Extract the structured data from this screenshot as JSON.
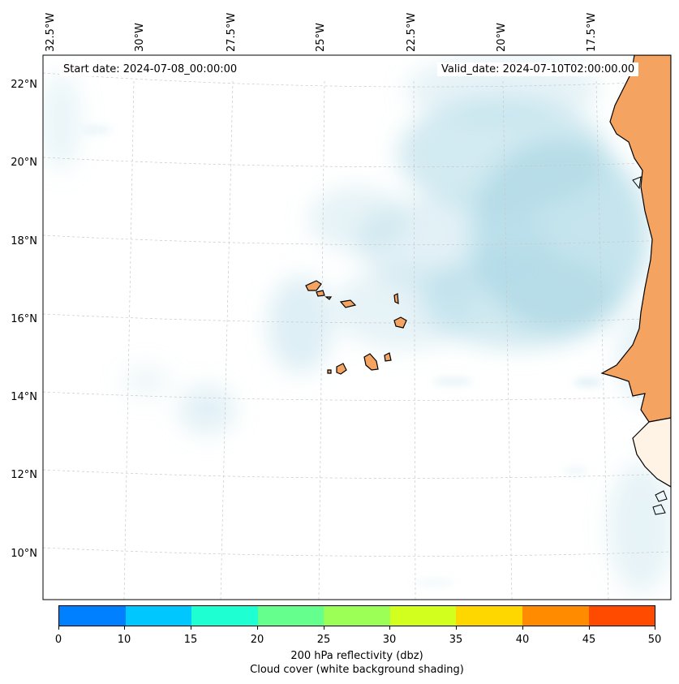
{
  "map": {
    "start_label": "Start date: 2024-07-08_00:00:00",
    "valid_label": "Valid_date: 2024-07-10T02:00:00.00",
    "lon_labels": [
      "32.5°W",
      "30°W",
      "27.5°W",
      "25°W",
      "22.5°W",
      "20°W",
      "17.5°W"
    ],
    "lat_labels": [
      "22°N",
      "20°N",
      "18°N",
      "16°N",
      "14°N",
      "12°N",
      "10°N"
    ],
    "cloud_color": "#add8e6",
    "land_reflectivity_color": "#f4a460"
  },
  "colorbar": {
    "ticks": [
      "0",
      "10",
      "15",
      "20",
      "25",
      "30",
      "35",
      "40",
      "45",
      "50"
    ],
    "colors": [
      "#0080ff",
      "#00c8ff",
      "#1effd2",
      "#64ff8c",
      "#9bff55",
      "#d2ff1e",
      "#ffd700",
      "#ff8c00",
      "#ff4b00"
    ],
    "label": "200 hPa reflectivity (dbz)",
    "sublabel": "Cloud cover (white background shading)"
  }
}
